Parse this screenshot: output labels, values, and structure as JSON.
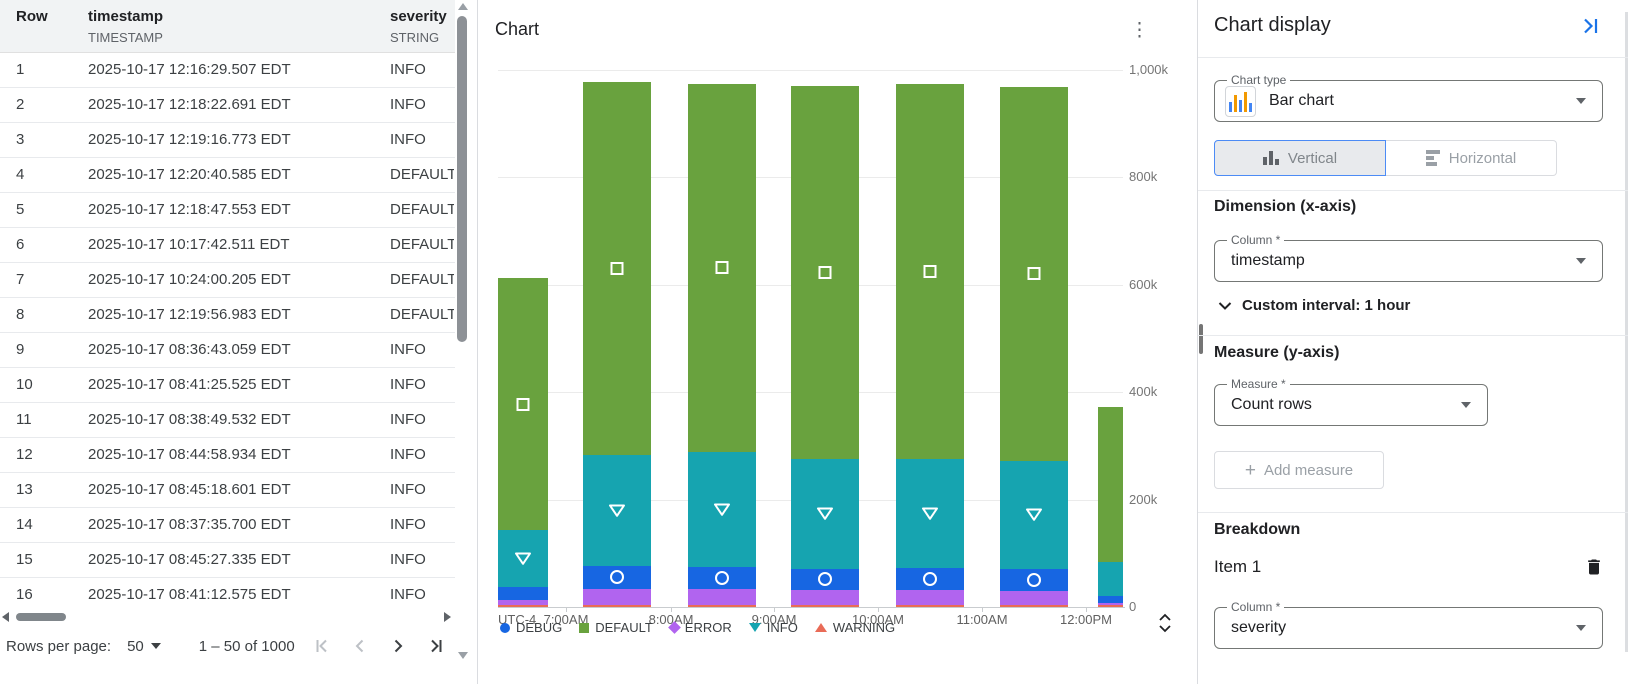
{
  "table": {
    "columns": [
      {
        "name": "Row",
        "type": ""
      },
      {
        "name": "timestamp",
        "type": "TIMESTAMP"
      },
      {
        "name": "severity",
        "type": "STRING"
      }
    ],
    "rows": [
      {
        "num": "1",
        "timestamp": "2025-10-17 12:16:29.507 EDT",
        "severity": "INFO"
      },
      {
        "num": "2",
        "timestamp": "2025-10-17 12:18:22.691 EDT",
        "severity": "INFO"
      },
      {
        "num": "3",
        "timestamp": "2025-10-17 12:19:16.773 EDT",
        "severity": "INFO"
      },
      {
        "num": "4",
        "timestamp": "2025-10-17 12:20:40.585 EDT",
        "severity": "DEFAULT"
      },
      {
        "num": "5",
        "timestamp": "2025-10-17 12:18:47.553 EDT",
        "severity": "DEFAULT"
      },
      {
        "num": "6",
        "timestamp": "2025-10-17 10:17:42.511 EDT",
        "severity": "DEFAULT"
      },
      {
        "num": "7",
        "timestamp": "2025-10-17 10:24:00.205 EDT",
        "severity": "DEFAULT"
      },
      {
        "num": "8",
        "timestamp": "2025-10-17 12:19:56.983 EDT",
        "severity": "DEFAULT"
      },
      {
        "num": "9",
        "timestamp": "2025-10-17 08:36:43.059 EDT",
        "severity": "INFO"
      },
      {
        "num": "10",
        "timestamp": "2025-10-17 08:41:25.525 EDT",
        "severity": "INFO"
      },
      {
        "num": "11",
        "timestamp": "2025-10-17 08:38:49.532 EDT",
        "severity": "INFO"
      },
      {
        "num": "12",
        "timestamp": "2025-10-17 08:44:58.934 EDT",
        "severity": "INFO"
      },
      {
        "num": "13",
        "timestamp": "2025-10-17 08:45:18.601 EDT",
        "severity": "INFO"
      },
      {
        "num": "14",
        "timestamp": "2025-10-17 08:37:35.700 EDT",
        "severity": "INFO"
      },
      {
        "num": "15",
        "timestamp": "2025-10-17 08:45:27.335 EDT",
        "severity": "INFO"
      },
      {
        "num": "16",
        "timestamp": "2025-10-17 08:41:12.575 EDT",
        "severity": "INFO"
      }
    ],
    "pagination": {
      "rows_per_page_label": "Rows per page:",
      "page_size": "50",
      "range": "1 – 50 of 1000"
    }
  },
  "chart": {
    "title": "Chart"
  },
  "chart_data": {
    "type": "bar",
    "stacked": true,
    "title": "Chart",
    "x_timezone": "UTC-4",
    "x_ticks": [
      "7:00AM",
      "8:00AM",
      "9:00AM",
      "10:00AM",
      "11:00AM",
      "12:00PM"
    ],
    "y_ticks": [
      "1,000k",
      "800k",
      "600k",
      "400k",
      "200k",
      "0"
    ],
    "y_tick_values": [
      1000,
      800,
      600,
      400,
      200,
      0
    ],
    "ylim": [
      0,
      1000
    ],
    "y_unit": "k (thousands)",
    "grid": true,
    "legend_position": "bottom",
    "series_order_bottom_to_top": [
      "WARNING",
      "ERROR",
      "DEBUG",
      "INFO",
      "DEFAULT"
    ],
    "series_colors": {
      "DEBUG": "#1766e2",
      "DEFAULT": "#69a23e",
      "ERROR": "#b164ef",
      "INFO": "#16a4b0",
      "WARNING": "#e96b57"
    },
    "legend": [
      {
        "label": "DEBUG",
        "shape": "circle"
      },
      {
        "label": "DEFAULT",
        "shape": "square"
      },
      {
        "label": "ERROR",
        "shape": "diamond"
      },
      {
        "label": "INFO",
        "shape": "triangle-down"
      },
      {
        "label": "WARNING",
        "shape": "triangle-up"
      }
    ],
    "bars": [
      {
        "bucket": "6:00AM",
        "clipped": "left",
        "show_markers": true,
        "values_k": {
          "WARNING": 4,
          "ERROR": 9,
          "DEBUG": 24,
          "INFO": 106,
          "DEFAULT": 470
        }
      },
      {
        "bucket": "7:00AM",
        "clipped": "none",
        "show_markers": true,
        "values_k": {
          "WARNING": 4,
          "ERROR": 30,
          "DEBUG": 43,
          "INFO": 207,
          "DEFAULT": 694
        }
      },
      {
        "bucket": "8:00AM",
        "clipped": "none",
        "show_markers": true,
        "values_k": {
          "WARNING": 4,
          "ERROR": 30,
          "DEBUG": 41,
          "INFO": 214,
          "DEFAULT": 685
        }
      },
      {
        "bucket": "9:00AM",
        "clipped": "none",
        "show_markers": true,
        "values_k": {
          "WARNING": 4,
          "ERROR": 28,
          "DEBUG": 39,
          "INFO": 205,
          "DEFAULT": 694
        }
      },
      {
        "bucket": "10:00AM",
        "clipped": "none",
        "show_markers": true,
        "values_k": {
          "WARNING": 4,
          "ERROR": 28,
          "DEBUG": 41,
          "INFO": 203,
          "DEFAULT": 698
        }
      },
      {
        "bucket": "11:00AM",
        "clipped": "none",
        "show_markers": true,
        "values_k": {
          "WARNING": 4,
          "ERROR": 26,
          "DEBUG": 41,
          "INFO": 201,
          "DEFAULT": 697
        }
      },
      {
        "bucket": "12:00PM",
        "clipped": "right",
        "show_markers": false,
        "values_k": {
          "WARNING": 4,
          "ERROR": 4,
          "DEBUG": 13,
          "INFO": 63,
          "DEFAULT": 288
        }
      }
    ]
  },
  "panel": {
    "title": "Chart display",
    "chart_type": {
      "label": "Chart type",
      "value": "Bar chart"
    },
    "orientation": {
      "vertical": "Vertical",
      "horizontal": "Horizontal",
      "selected": "Vertical"
    },
    "dimension": {
      "heading": "Dimension (x-axis)",
      "column_label": "Column *",
      "column_value": "timestamp",
      "interval": "Custom interval: 1 hour"
    },
    "measure": {
      "heading": "Measure (y-axis)",
      "label": "Measure *",
      "value": "Count rows",
      "add_button": "Add measure"
    },
    "breakdown": {
      "heading": "Breakdown",
      "item": "Item 1",
      "column_label": "Column *",
      "column_value": "severity"
    }
  },
  "icons": {
    "kebab": "⋮",
    "dropdown_caret": "▼",
    "scroll_up": "▲",
    "scroll_down": "▼",
    "scroll_left": "◀",
    "scroll_right": "▶"
  },
  "accent_color": "#1a73e8"
}
